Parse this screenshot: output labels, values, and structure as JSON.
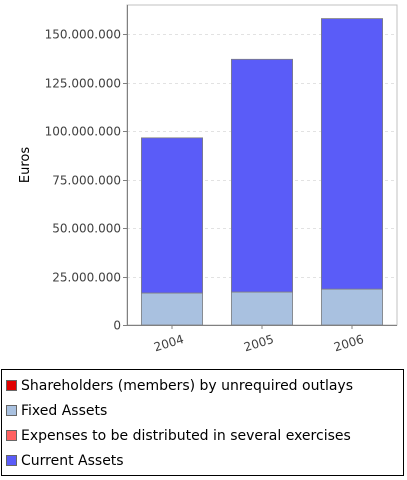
{
  "chart_data": {
    "type": "bar",
    "stacked": true,
    "categories": [
      "2004",
      "2005",
      "2006"
    ],
    "ylabel": "Euros",
    "ylim": [
      0,
      165000000
    ],
    "yticks": [
      0,
      25000000,
      50000000,
      75000000,
      100000000,
      125000000,
      150000000
    ],
    "ytick_labels": [
      "0",
      "25.000.000",
      "50.000.000",
      "75.000.000",
      "100.000.000",
      "125.000.000",
      "150.000.000"
    ],
    "grid": true,
    "legend_position": "bottom",
    "series": [
      {
        "name": "Shareholders (members) by unrequired outlays",
        "color": "#e00000",
        "values": [
          0,
          0,
          0
        ]
      },
      {
        "name": "Fixed Assets",
        "color": "#a9c1e0",
        "values": [
          16500000,
          17000000,
          18500000
        ]
      },
      {
        "name": "Expenses to be distributed in several exercises",
        "color": "#ff6060",
        "values": [
          0,
          0,
          0
        ]
      },
      {
        "name": "Current Assets",
        "color": "#5a5cf8",
        "values": [
          80000000,
          120000000,
          139500000
        ]
      }
    ]
  }
}
